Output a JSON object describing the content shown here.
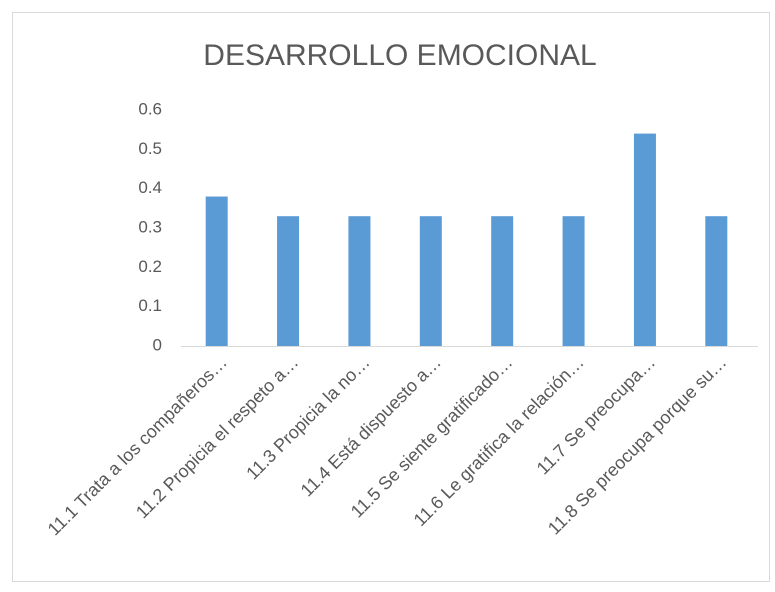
{
  "chart_data": {
    "type": "bar",
    "title": "DESARROLLO EMOCIONAL",
    "categories": [
      "11.1 Trata a los compañeros…",
      "11.2 Propicia el respeto a…",
      "11.3 Propicia la no…",
      "11.4 Está dispuesto a…",
      "11.5 Se siente gratificado…",
      "11.6 Le gratifica la relación…",
      "11.7 Se preocupa…",
      "11.8 Se preocupa porque su…"
    ],
    "values": [
      0.38,
      0.33,
      0.33,
      0.33,
      0.33,
      0.33,
      0.54,
      0.33
    ],
    "color": "#5b9bd5",
    "ylim": [
      0,
      0.6
    ],
    "yticks": [
      0,
      0.1,
      0.2,
      0.3,
      0.4,
      0.5,
      0.6
    ],
    "grid": false
  }
}
